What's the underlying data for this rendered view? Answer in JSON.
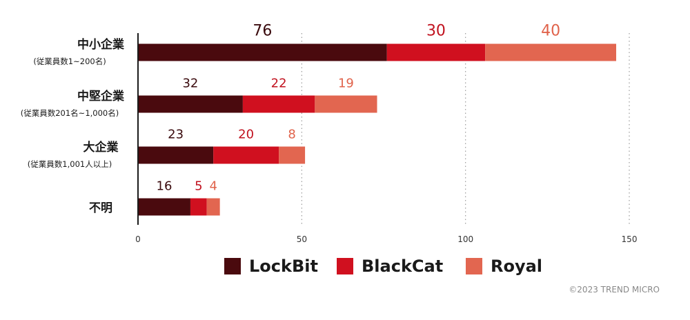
{
  "chart_data": {
    "type": "bar",
    "orientation": "horizontal",
    "stacked": true,
    "categories": [
      {
        "label": "中小企業",
        "sub": "(従業員数1~200名)"
      },
      {
        "label": "中堅企業",
        "sub": "(従業員数201名~1,000名)"
      },
      {
        "label": "大企業",
        "sub": "(従業員数1,001人以上)"
      },
      {
        "label": "不明",
        "sub": ""
      }
    ],
    "series": [
      {
        "name": "LockBit",
        "color": "#4a0a0e",
        "label_color": "#3a0a0d",
        "values": [
          76,
          32,
          23,
          16
        ]
      },
      {
        "name": "BlackCat",
        "color": "#d0101f",
        "label_color": "#c1121f",
        "values": [
          30,
          22,
          20,
          5
        ]
      },
      {
        "name": "Royal",
        "color": "#e26650",
        "label_color": "#e0624a",
        "values": [
          40,
          19,
          8,
          4
        ]
      }
    ],
    "xlim": [
      0,
      150
    ],
    "xticks": [
      0,
      50,
      100,
      150
    ],
    "grid": "vertical-dotted",
    "legend_position": "bottom-center"
  },
  "copyright": "©2023 TREND MICRO"
}
